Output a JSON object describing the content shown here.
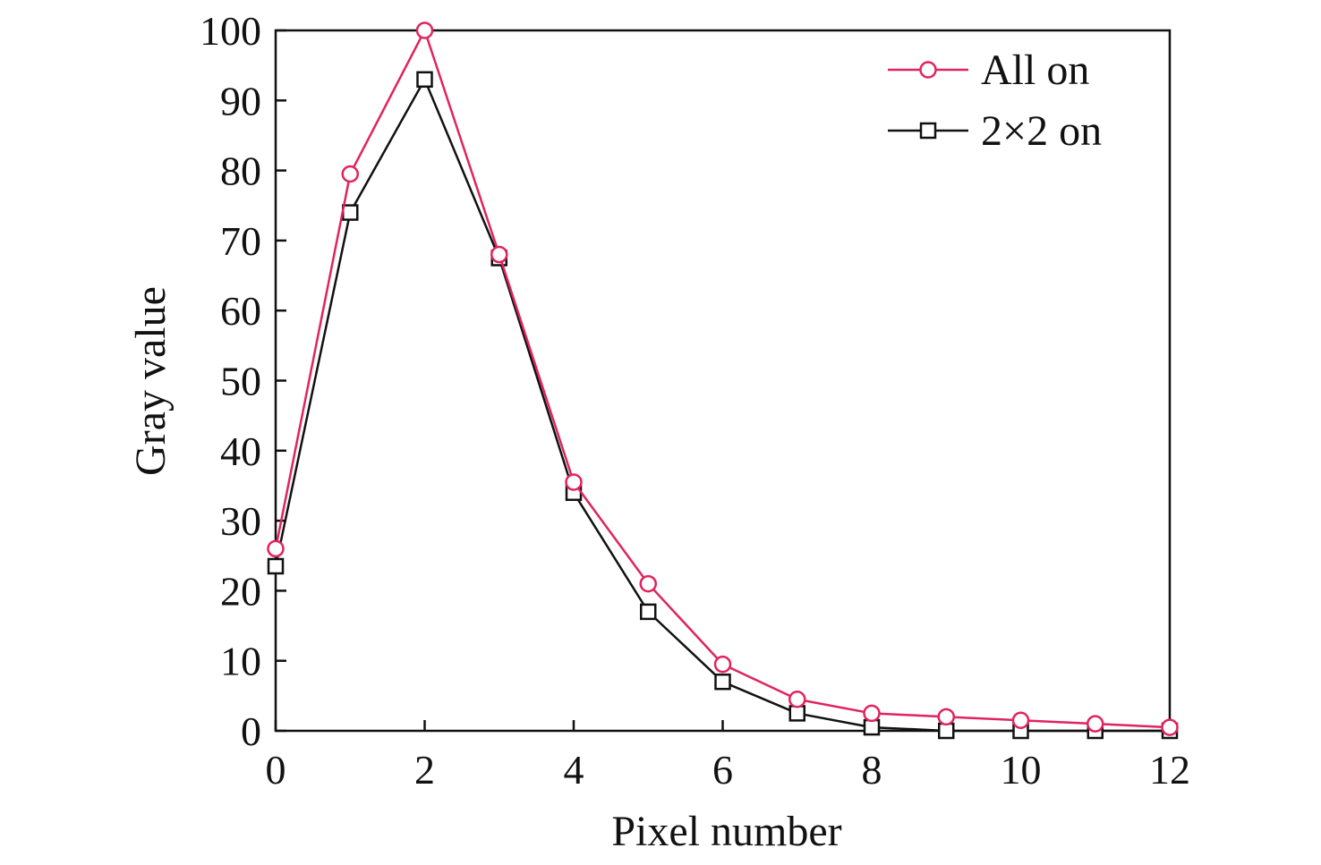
{
  "chart_data": {
    "type": "line",
    "xlabel": "Pixel number",
    "ylabel": "Gray value",
    "xlim": [
      0,
      12
    ],
    "ylim": [
      0,
      100
    ],
    "xticks": [
      0,
      2,
      4,
      6,
      8,
      10,
      12
    ],
    "yticks": [
      0,
      10,
      20,
      30,
      40,
      50,
      60,
      70,
      80,
      90,
      100
    ],
    "grid": false,
    "legend_position": "top-right",
    "series": [
      {
        "name": "All on",
        "color": "#e0245e",
        "marker": "circle",
        "x": [
          0,
          1,
          2,
          3,
          4,
          5,
          6,
          7,
          8,
          9,
          10,
          11,
          12
        ],
        "y": [
          26,
          79.5,
          100,
          68,
          35.5,
          21,
          9.5,
          4.5,
          2.5,
          2,
          1.5,
          1,
          0.5
        ]
      },
      {
        "name": "2×2 on",
        "color": "#111111",
        "marker": "square",
        "x": [
          0,
          1,
          2,
          3,
          4,
          5,
          6,
          7,
          8,
          9,
          10,
          11,
          12
        ],
        "y": [
          23.5,
          74,
          93,
          67.5,
          34,
          17,
          7,
          2.5,
          0.5,
          0,
          0,
          0,
          0
        ]
      }
    ]
  }
}
